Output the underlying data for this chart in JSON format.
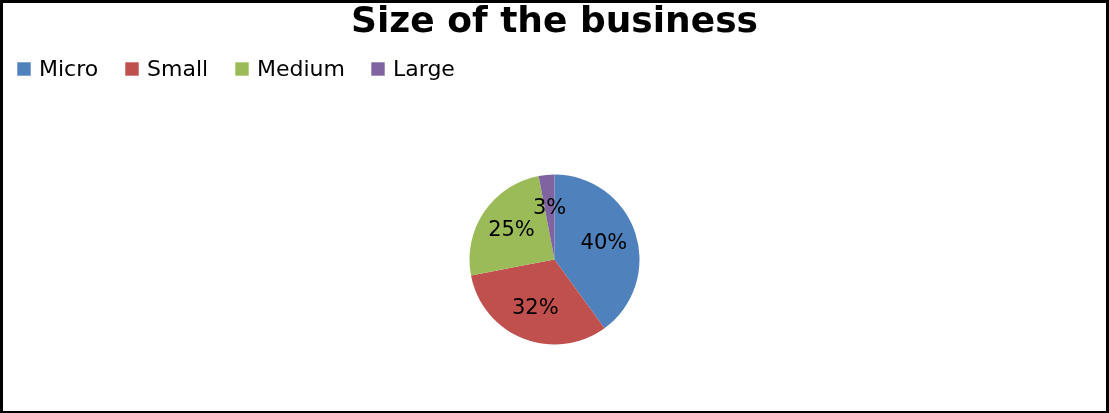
{
  "chart_data": {
    "type": "pie",
    "title": "Size of the business",
    "categories": [
      "Micro",
      "Small",
      "Medium",
      "Large"
    ],
    "values": [
      40,
      32,
      25,
      3
    ],
    "colors": [
      "#4f81bd",
      "#c0504d",
      "#9bbb59",
      "#8064a2"
    ],
    "value_labels": [
      "40%",
      "32%",
      "25%",
      "3%"
    ],
    "legend": "top"
  }
}
